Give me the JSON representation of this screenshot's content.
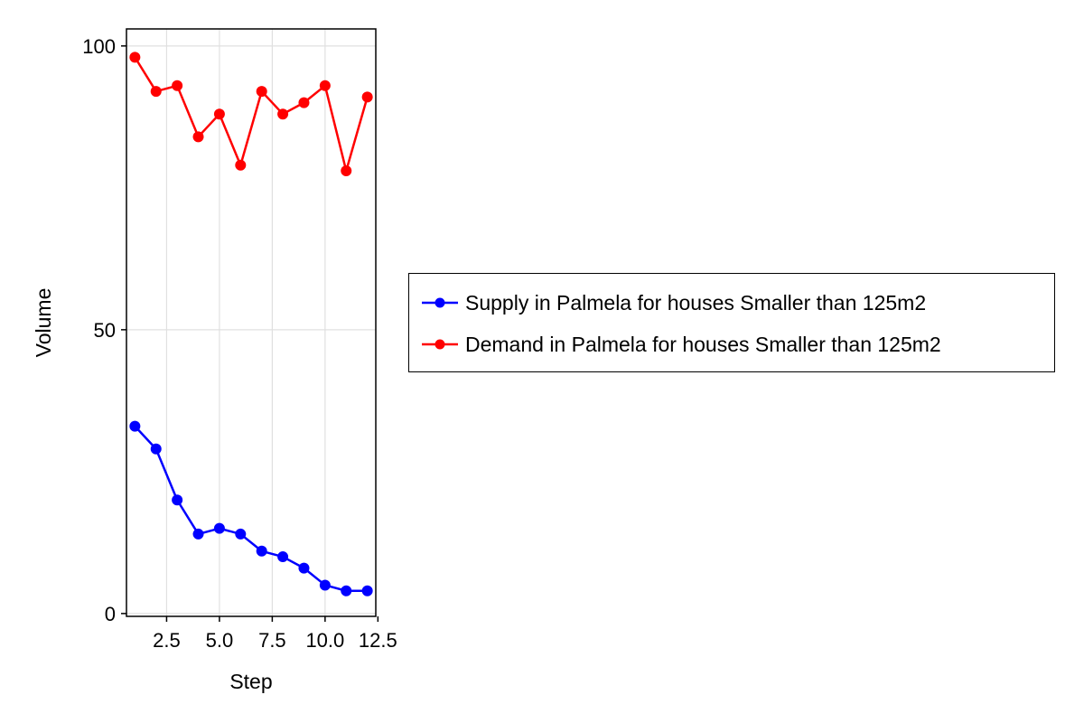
{
  "chart_data": {
    "type": "line",
    "xlabel": "Step",
    "ylabel": "Volume",
    "xlim": [
      0.6,
      12.4
    ],
    "ylim": [
      -0.5,
      103
    ],
    "x_ticks": [
      2.5,
      5.0,
      7.5,
      10.0,
      12.5
    ],
    "x_tick_labels": [
      "2.5",
      "5.0",
      "7.5",
      "10.0",
      "12.5"
    ],
    "y_ticks": [
      0,
      50,
      100
    ],
    "y_tick_labels": [
      "0",
      "50",
      "100"
    ],
    "grid": true,
    "legend_position": "right",
    "x": [
      1,
      2,
      3,
      4,
      5,
      6,
      7,
      8,
      9,
      10,
      11,
      12
    ],
    "series": [
      {
        "name": "Supply in Palmela for houses Smaller than 125m2",
        "color": "#0000ff",
        "values": [
          33,
          29,
          20,
          14,
          15,
          14,
          11,
          10,
          8,
          5,
          4,
          4
        ]
      },
      {
        "name": "Demand in Palmela for houses Smaller than 125m2",
        "color": "#ff0000",
        "values": [
          98,
          92,
          93,
          84,
          88,
          79,
          92,
          88,
          90,
          93,
          78,
          91
        ]
      }
    ]
  }
}
